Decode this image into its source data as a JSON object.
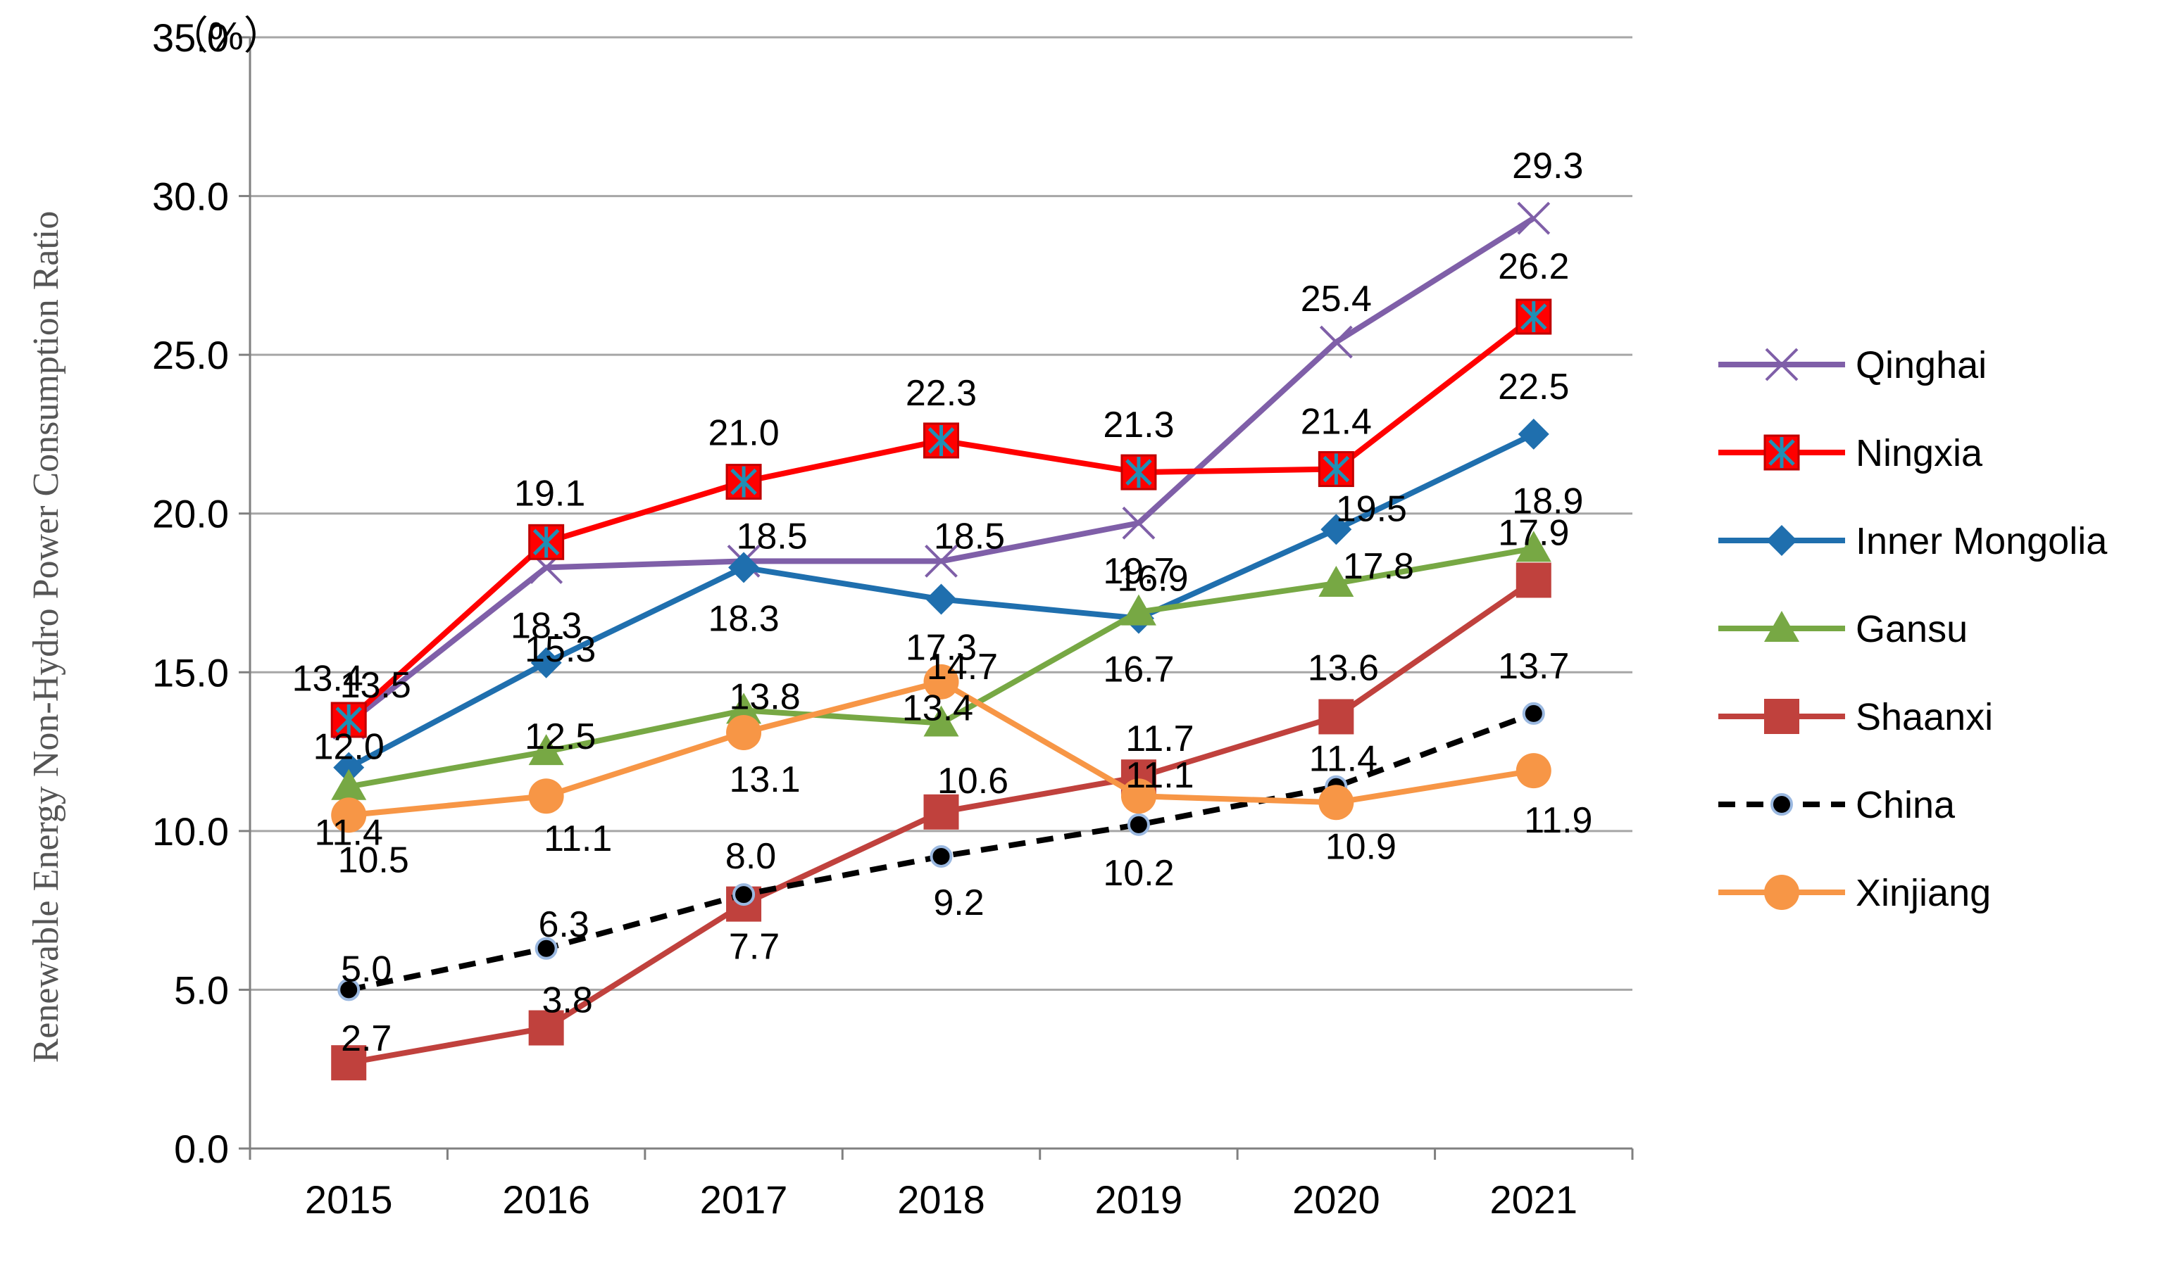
{
  "chart_data": {
    "type": "line",
    "title": "",
    "ylabel": "Renewable Energy Non-Hydro Power Consumption Ratio",
    "xlabel": "",
    "unit_label": "（%）",
    "ylim": [
      0,
      35
    ],
    "yticks": [
      "0.0",
      "5.0",
      "10.0",
      "15.0",
      "20.0",
      "25.0",
      "30.0",
      "35.0"
    ],
    "categories": [
      "2015",
      "2016",
      "2017",
      "2018",
      "2019",
      "2020",
      "2021"
    ],
    "legend_position": "right",
    "series": [
      {
        "name": "Qinghai",
        "color": "#7f5fa8",
        "marker": "x",
        "dashed": false,
        "values": [
          13.4,
          18.3,
          18.5,
          18.5,
          19.7,
          25.4,
          29.3
        ],
        "labels": [
          "13.4",
          "18.3",
          "18.5",
          "18.5",
          "19.7",
          "25.4",
          "29.3"
        ]
      },
      {
        "name": "Ningxia",
        "color": "#ff0000",
        "marker": "square-star",
        "dashed": false,
        "values": [
          13.5,
          19.1,
          21.0,
          22.3,
          21.3,
          21.4,
          26.2
        ],
        "labels": [
          "13.5",
          "19.1",
          "21.0",
          "22.3",
          "21.3",
          "21.4",
          "26.2"
        ]
      },
      {
        "name": "Inner Mongolia",
        "color": "#1f6fae",
        "marker": "diamond",
        "dashed": false,
        "values": [
          12.0,
          15.3,
          18.3,
          17.3,
          16.7,
          19.5,
          22.5
        ],
        "labels": [
          "12.0",
          "15.3",
          "18.3",
          "17.3",
          "16.7",
          "19.5",
          "22.5"
        ]
      },
      {
        "name": "Gansu",
        "color": "#77a844",
        "marker": "triangle",
        "dashed": false,
        "values": [
          11.4,
          12.5,
          13.8,
          13.4,
          16.9,
          17.8,
          18.9
        ],
        "labels": [
          "11.4",
          "12.5",
          "13.8",
          "13.4",
          "16.9",
          "17.8",
          "18.9"
        ]
      },
      {
        "name": "Shaanxi",
        "color": "#c0413d",
        "marker": "square",
        "dashed": false,
        "values": [
          2.7,
          3.8,
          7.7,
          10.6,
          11.7,
          13.6,
          17.9
        ],
        "labels": [
          "2.7",
          "3.8",
          "7.7",
          "10.6",
          "11.7",
          "13.6",
          "17.9"
        ]
      },
      {
        "name": "China",
        "color": "#000000",
        "marker": "dot",
        "dashed": true,
        "values": [
          5.0,
          6.3,
          8.0,
          9.2,
          10.2,
          11.4,
          13.7
        ],
        "labels": [
          "5.0",
          "6.3",
          "8.0",
          "9.2",
          "10.2",
          "11.4",
          "13.7"
        ]
      },
      {
        "name": "Xinjiang",
        "color": "#f79646",
        "marker": "circle",
        "dashed": false,
        "values": [
          10.5,
          11.1,
          13.1,
          14.7,
          11.1,
          10.9,
          11.9
        ],
        "labels": [
          "10.5",
          "11.1",
          "13.1",
          "14.7",
          "11.1",
          "10.9",
          "11.9"
        ]
      }
    ]
  }
}
